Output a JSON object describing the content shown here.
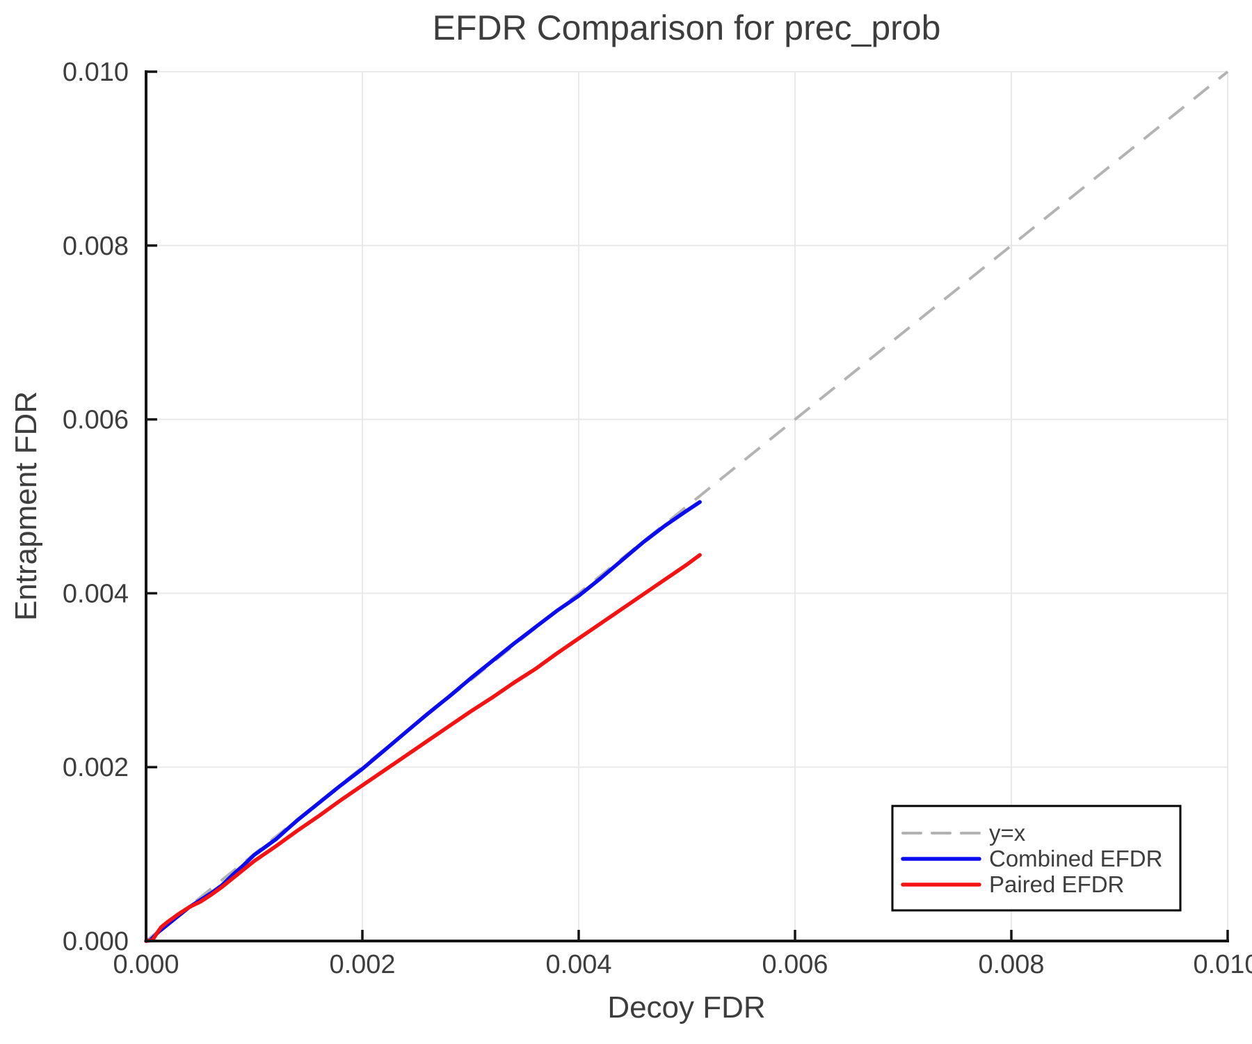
{
  "figure": {
    "background": "#ffffff"
  },
  "chart_data": {
    "type": "line",
    "title": "EFDR Comparison for prec_prob",
    "xlabel": "Decoy FDR",
    "ylabel": "Entrapment FDR",
    "xlim": [
      0.0,
      0.01
    ],
    "ylim": [
      0.0,
      0.01
    ],
    "grid": true,
    "legend_position": "lower right",
    "xticks": {
      "values": [
        0.0,
        0.002,
        0.004,
        0.006,
        0.008,
        0.01
      ],
      "labels": [
        "0.000",
        "0.002",
        "0.004",
        "0.006",
        "0.008",
        "0.010"
      ]
    },
    "yticks": {
      "values": [
        0.0,
        0.002,
        0.004,
        0.006,
        0.008,
        0.01
      ],
      "labels": [
        "0.000",
        "0.002",
        "0.004",
        "0.006",
        "0.008",
        "0.010"
      ]
    },
    "reference_line": {
      "label": "y=x",
      "color": "#b3b3b3",
      "style": "dashed",
      "from": [
        0.0,
        0.0
      ],
      "to": [
        0.01,
        0.01
      ]
    },
    "series": [
      {
        "name": "Combined EFDR",
        "color": "#0b0bf0",
        "points": [
          [
            0,
            0
          ],
          [
            4e-05,
            1e-05
          ],
          [
            8e-05,
            6e-05
          ],
          [
            0.00012,
            0.00011
          ],
          [
            0.0002,
            0.00019
          ],
          [
            0.0003,
            0.00029
          ],
          [
            0.0004,
            0.00039
          ],
          [
            0.0005,
            0.00047
          ],
          [
            0.0006,
            0.00055
          ],
          [
            0.0007,
            0.00064
          ],
          [
            0.0008,
            0.00076
          ],
          [
            0.0009,
            0.00087
          ],
          [
            0.001,
            0.00099
          ],
          [
            0.0011,
            0.00108
          ],
          [
            0.0012,
            0.00117
          ],
          [
            0.0013,
            0.00128
          ],
          [
            0.0014,
            0.00139
          ],
          [
            0.0016,
            0.00159
          ],
          [
            0.0018,
            0.00179
          ],
          [
            0.002,
            0.00198
          ],
          [
            0.0022,
            0.00219
          ],
          [
            0.0024,
            0.0024
          ],
          [
            0.0026,
            0.00261
          ],
          [
            0.0028,
            0.00281
          ],
          [
            0.003,
            0.00302
          ],
          [
            0.0032,
            0.00322
          ],
          [
            0.0034,
            0.00342
          ],
          [
            0.0036,
            0.00361
          ],
          [
            0.0038,
            0.0038
          ],
          [
            0.004,
            0.00397
          ],
          [
            0.0042,
            0.00417
          ],
          [
            0.0044,
            0.00438
          ],
          [
            0.0046,
            0.00459
          ],
          [
            0.0048,
            0.00478
          ],
          [
            0.005,
            0.00495
          ],
          [
            0.00512,
            0.00505
          ]
        ]
      },
      {
        "name": "Paired EFDR",
        "color": "#f51212",
        "points": [
          [
            0,
            0
          ],
          [
            6e-05,
            1e-05
          ],
          [
            0.0001,
            9e-05
          ],
          [
            0.00014,
            0.00016
          ],
          [
            0.0002,
            0.00022
          ],
          [
            0.0003,
            0.00031
          ],
          [
            0.0004,
            0.00039
          ],
          [
            0.0005,
            0.00045
          ],
          [
            0.0006,
            0.00053
          ],
          [
            0.0007,
            0.00062
          ],
          [
            0.0008,
            0.00072
          ],
          [
            0.0009,
            0.00082
          ],
          [
            0.001,
            0.00092
          ],
          [
            0.0012,
            0.00109
          ],
          [
            0.0014,
            0.00127
          ],
          [
            0.0016,
            0.00144
          ],
          [
            0.0018,
            0.00162
          ],
          [
            0.002,
            0.00179
          ],
          [
            0.0022,
            0.00196
          ],
          [
            0.0024,
            0.00213
          ],
          [
            0.0026,
            0.0023
          ],
          [
            0.0028,
            0.00247
          ],
          [
            0.003,
            0.00264
          ],
          [
            0.0032,
            0.0028
          ],
          [
            0.0034,
            0.00297
          ],
          [
            0.0036,
            0.00313
          ],
          [
            0.0038,
            0.00331
          ],
          [
            0.004,
            0.00348
          ],
          [
            0.0042,
            0.00365
          ],
          [
            0.0044,
            0.00382
          ],
          [
            0.0046,
            0.00399
          ],
          [
            0.0048,
            0.00416
          ],
          [
            0.005,
            0.00433
          ],
          [
            0.00512,
            0.00444
          ]
        ]
      }
    ],
    "colors": {
      "grid": "#e9e9e9",
      "axis": "#141414",
      "text": "#3d3d3d",
      "background": "#ffffff"
    }
  }
}
